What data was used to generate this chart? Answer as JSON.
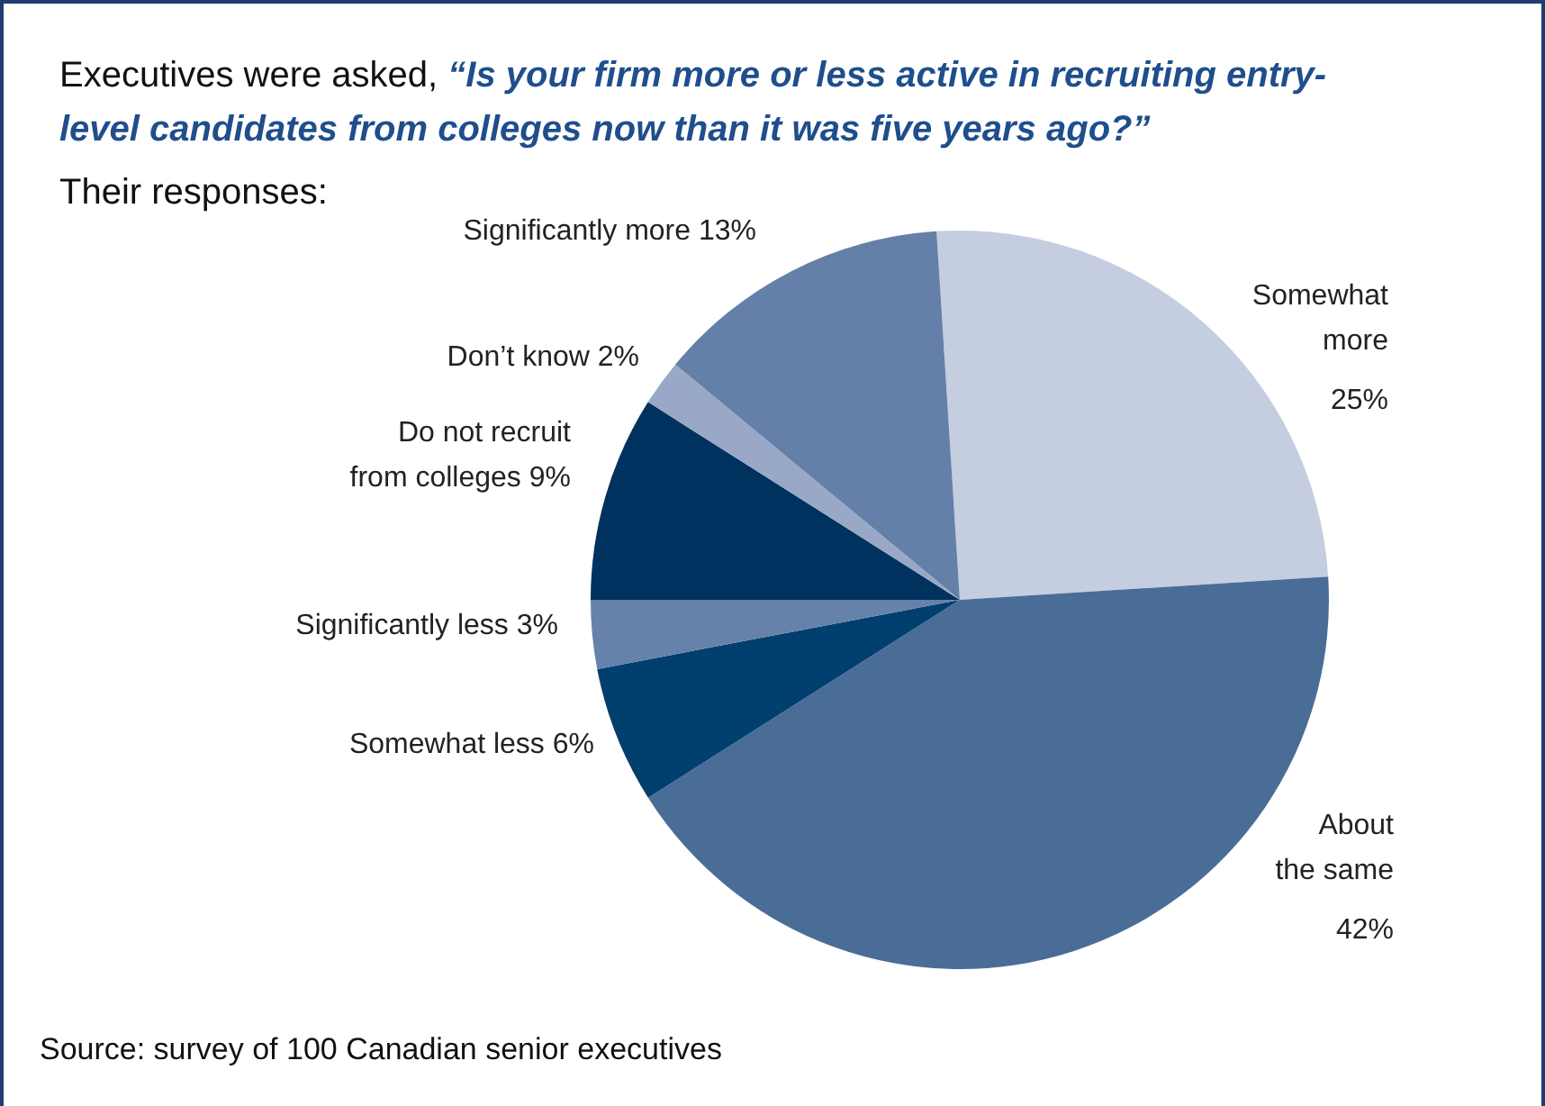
{
  "chart_data": {
    "type": "pie",
    "title": "Executives were asked, “Is your firm more or less active in recruiting entry-level candidates from colleges now than it was five years ago?”",
    "subtitle": "Their responses:",
    "categories": [
      "Somewhat more",
      "About the same",
      "Somewhat less",
      "Significantly less",
      "Do not recruit from colleges",
      "Don’t know",
      "Significantly more"
    ],
    "values": [
      25,
      42,
      6,
      3,
      9,
      2,
      13
    ],
    "colors": [
      "#c5cde0",
      "#4a6d98",
      "#003f6e",
      "#6682aa",
      "#00325f",
      "#98a8c6",
      "#6480a8"
    ],
    "value_labels": [
      "25%",
      "42%",
      "6%",
      "3%",
      "9%",
      "2%",
      "13%"
    ],
    "annotations": [
      "Source: survey of 100 Canadian senior executives"
    ]
  }
}
